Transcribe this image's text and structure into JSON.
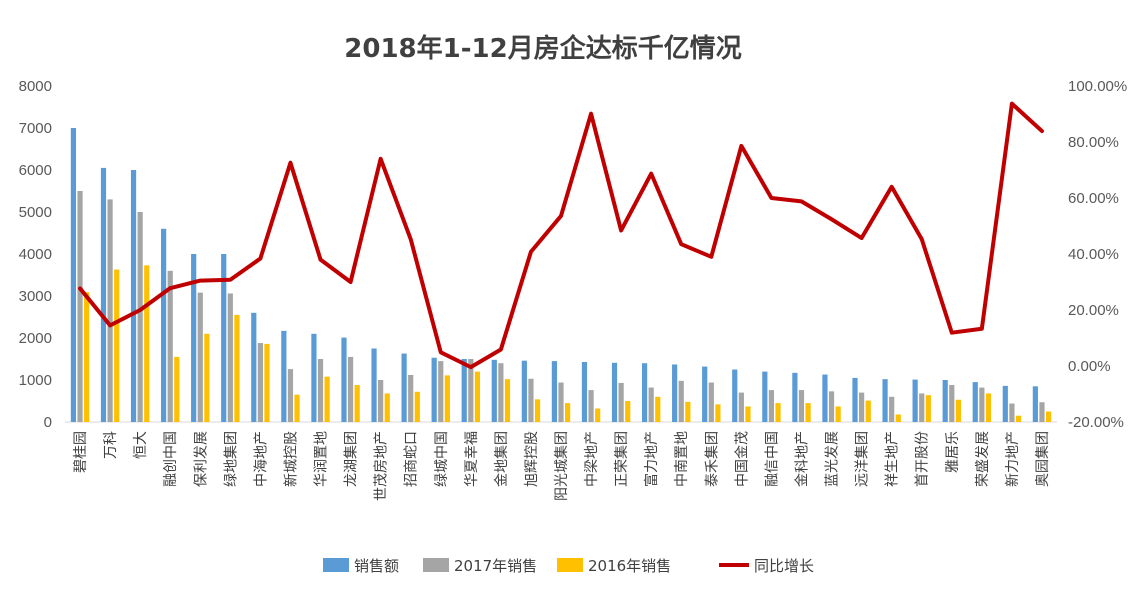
{
  "chart_data": {
    "type": "bar",
    "title": "2018年1-12月房企达标千亿情况",
    "categories": [
      "碧桂园",
      "万科",
      "恒大",
      "融创中国",
      "保利发展",
      "绿地集团",
      "中海地产",
      "新城控股",
      "华润置地",
      "龙湖集团",
      "世茂房地产",
      "招商蛇口",
      "绿城中国",
      "华夏幸福",
      "金地集团",
      "旭辉控股",
      "阳光城集团",
      "中梁地产",
      "正荣集团",
      "富力地产",
      "中南置地",
      "泰禾集团",
      "中国金茂",
      "融信中国",
      "金科地产",
      "蓝光发展",
      "远洋集团",
      "祥生地产",
      "首开股份",
      "雅居乐",
      "荣盛发展",
      "新力地产",
      "奥园集团"
    ],
    "series": [
      {
        "name": "销售额",
        "axis": "left",
        "chart_type": "bar",
        "color": "#5b9bd5",
        "values": [
          7000,
          6050,
          6000,
          4600,
          4000,
          4000,
          2600,
          2170,
          2100,
          2010,
          1750,
          1630,
          1530,
          1500,
          1480,
          1460,
          1450,
          1430,
          1410,
          1400,
          1370,
          1320,
          1250,
          1200,
          1170,
          1130,
          1050,
          1020,
          1010,
          1000,
          950,
          860,
          850
        ]
      },
      {
        "name": "2017年销售",
        "axis": "left",
        "chart_type": "bar",
        "color": "#a5a5a5",
        "values": [
          5500,
          5300,
          5000,
          3600,
          3080,
          3060,
          1880,
          1260,
          1500,
          1550,
          1000,
          1120,
          1450,
          1500,
          1400,
          1030,
          940,
          760,
          930,
          820,
          980,
          940,
          700,
          760,
          760,
          730,
          700,
          600,
          680,
          880,
          820,
          440,
          470
        ]
      },
      {
        "name": "2016年销售",
        "axis": "left",
        "chart_type": "bar",
        "color": "#ffc000",
        "values": [
          3090,
          3630,
          3730,
          1550,
          2100,
          2550,
          1860,
          650,
          1080,
          880,
          680,
          720,
          1110,
          1200,
          1020,
          540,
          450,
          320,
          500,
          600,
          480,
          420,
          370,
          450,
          450,
          370,
          510,
          180,
          640,
          530,
          680,
          150,
          250
        ]
      },
      {
        "name": "同比增长",
        "axis": "right",
        "chart_type": "line",
        "color": "#c00000",
        "values": [
          27.7,
          14.5,
          20.0,
          27.8,
          30.5,
          30.8,
          38.4,
          72.6,
          38.0,
          30.0,
          74.0,
          45.3,
          4.9,
          -0.4,
          5.9,
          40.8,
          53.6,
          90.1,
          48.4,
          68.7,
          43.5,
          39.0,
          78.6,
          60.0,
          58.8,
          52.4,
          45.7,
          64.0,
          45.3,
          11.9,
          13.3,
          93.7,
          83.9
        ]
      }
    ],
    "y_left": {
      "min": 0,
      "max": 8000,
      "ticks": [
        "0",
        "1000",
        "2000",
        "3000",
        "4000",
        "5000",
        "6000",
        "7000",
        "8000"
      ]
    },
    "y_right": {
      "min": -20,
      "max": 100,
      "ticks": [
        "-20.00%",
        "0.00%",
        "20.00%",
        "40.00%",
        "60.00%",
        "80.00%",
        "100.00%"
      ]
    },
    "grid": false,
    "legend_position": "bottom"
  }
}
